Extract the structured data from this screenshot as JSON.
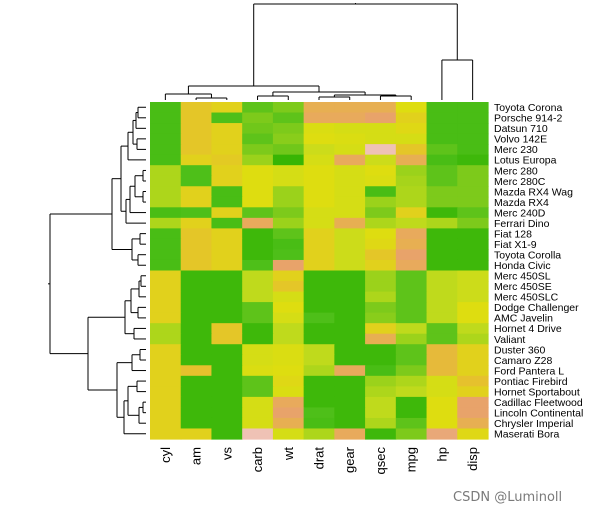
{
  "chart_data": {
    "type": "heatmap",
    "title": "",
    "rows": [
      "Toyota Corona",
      "Porsche 914-2",
      "Datsun 710",
      "Volvo 142E",
      "Merc 230",
      "Lotus Europa",
      "Merc 280",
      "Merc 280C",
      "Mazda RX4 Wag",
      "Mazda RX4",
      "Merc 240D",
      "Ferrari Dino",
      "Fiat 128",
      "Fiat X1-9",
      "Toyota Corolla",
      "Honda Civic",
      "Merc 450SL",
      "Merc 450SE",
      "Merc 450SLC",
      "Dodge Challenger",
      "AMC Javelin",
      "Hornet 4 Drive",
      "Valiant",
      "Duster 360",
      "Camaro Z28",
      "Ford Pantera L",
      "Pontiac Firebird",
      "Hornet Sportabout",
      "Cadillac Fleetwood",
      "Lincoln Continental",
      "Chrysler Imperial",
      "Maserati Bora"
    ],
    "columns": [
      "cyl",
      "am",
      "vs",
      "carb",
      "wt",
      "drat",
      "gear",
      "qsec",
      "mpg",
      "hp",
      "disp"
    ],
    "value_range": [
      0,
      1
    ],
    "color_scale": [
      "#33b300",
      "#4fbf1a",
      "#9bd21b",
      "#c8dc1c",
      "#dedd10",
      "#e6c02e",
      "#e8a36a",
      "#eeb6a6",
      "#f2f2f2"
    ],
    "values": [
      [
        0.1,
        0.6,
        0.55,
        0.15,
        0.2,
        0.7,
        0.7,
        0.7,
        0.5,
        0.1,
        0.1
      ],
      [
        0.1,
        0.6,
        0.12,
        0.2,
        0.15,
        0.72,
        0.72,
        0.75,
        0.55,
        0.1,
        0.1
      ],
      [
        0.1,
        0.6,
        0.55,
        0.18,
        0.2,
        0.48,
        0.45,
        0.45,
        0.52,
        0.1,
        0.1
      ],
      [
        0.1,
        0.6,
        0.55,
        0.15,
        0.22,
        0.5,
        0.48,
        0.45,
        0.45,
        0.1,
        0.1
      ],
      [
        0.1,
        0.6,
        0.55,
        0.2,
        0.18,
        0.4,
        0.45,
        0.9,
        0.6,
        0.15,
        0.1
      ],
      [
        0.1,
        0.55,
        0.58,
        0.25,
        0.02,
        0.45,
        0.72,
        0.4,
        0.7,
        0.1,
        0.05
      ],
      [
        0.3,
        0.12,
        0.55,
        0.5,
        0.45,
        0.5,
        0.45,
        0.5,
        0.25,
        0.15,
        0.2
      ],
      [
        0.3,
        0.12,
        0.55,
        0.5,
        0.45,
        0.5,
        0.45,
        0.48,
        0.28,
        0.15,
        0.2
      ],
      [
        0.3,
        0.55,
        0.1,
        0.5,
        0.25,
        0.5,
        0.45,
        0.1,
        0.3,
        0.2,
        0.2
      ],
      [
        0.3,
        0.55,
        0.1,
        0.5,
        0.25,
        0.5,
        0.45,
        0.25,
        0.3,
        0.2,
        0.2
      ],
      [
        0.1,
        0.12,
        0.55,
        0.15,
        0.2,
        0.45,
        0.45,
        0.2,
        0.55,
        0.05,
        0.15
      ],
      [
        0.3,
        0.55,
        0.1,
        0.72,
        0.25,
        0.45,
        0.7,
        0.3,
        0.35,
        0.3,
        0.2
      ],
      [
        0.1,
        0.6,
        0.55,
        0.05,
        0.15,
        0.55,
        0.4,
        0.5,
        0.72,
        0.05,
        0.05
      ],
      [
        0.1,
        0.6,
        0.55,
        0.05,
        0.1,
        0.55,
        0.4,
        0.52,
        0.7,
        0.05,
        0.05
      ],
      [
        0.1,
        0.6,
        0.55,
        0.05,
        0.12,
        0.55,
        0.4,
        0.6,
        0.75,
        0.05,
        0.05
      ],
      [
        0.1,
        0.6,
        0.55,
        0.12,
        0.75,
        0.55,
        0.4,
        0.55,
        0.72,
        0.05,
        0.05
      ],
      [
        0.55,
        0.05,
        0.05,
        0.35,
        0.55,
        0.05,
        0.05,
        0.25,
        0.15,
        0.35,
        0.4
      ],
      [
        0.55,
        0.05,
        0.05,
        0.35,
        0.6,
        0.05,
        0.05,
        0.25,
        0.15,
        0.35,
        0.4
      ],
      [
        0.55,
        0.05,
        0.05,
        0.35,
        0.45,
        0.05,
        0.05,
        0.3,
        0.15,
        0.35,
        0.4
      ],
      [
        0.55,
        0.05,
        0.05,
        0.15,
        0.5,
        0.05,
        0.05,
        0.2,
        0.15,
        0.35,
        0.5
      ],
      [
        0.55,
        0.05,
        0.05,
        0.15,
        0.45,
        0.12,
        0.05,
        0.22,
        0.15,
        0.35,
        0.5
      ],
      [
        0.3,
        0.05,
        0.6,
        0.05,
        0.35,
        0.05,
        0.05,
        0.55,
        0.35,
        0.15,
        0.35
      ],
      [
        0.3,
        0.05,
        0.6,
        0.05,
        0.35,
        0.05,
        0.05,
        0.7,
        0.25,
        0.15,
        0.3
      ],
      [
        0.55,
        0.05,
        0.05,
        0.45,
        0.48,
        0.35,
        0.05,
        0.05,
        0.15,
        0.65,
        0.55
      ],
      [
        0.55,
        0.05,
        0.05,
        0.45,
        0.48,
        0.35,
        0.05,
        0.05,
        0.15,
        0.65,
        0.55
      ],
      [
        0.55,
        0.62,
        0.05,
        0.48,
        0.5,
        0.3,
        0.72,
        0.1,
        0.2,
        0.65,
        0.55
      ],
      [
        0.55,
        0.05,
        0.05,
        0.15,
        0.52,
        0.05,
        0.05,
        0.25,
        0.3,
        0.45,
        0.62
      ],
      [
        0.55,
        0.05,
        0.05,
        0.15,
        0.48,
        0.05,
        0.05,
        0.3,
        0.35,
        0.45,
        0.55
      ],
      [
        0.55,
        0.05,
        0.05,
        0.45,
        0.72,
        0.05,
        0.05,
        0.35,
        0.05,
        0.5,
        0.75
      ],
      [
        0.55,
        0.05,
        0.05,
        0.45,
        0.75,
        0.12,
        0.05,
        0.35,
        0.05,
        0.5,
        0.75
      ],
      [
        0.55,
        0.05,
        0.05,
        0.45,
        0.7,
        0.1,
        0.05,
        0.3,
        0.15,
        0.5,
        0.7
      ],
      [
        0.55,
        0.55,
        0.05,
        0.9,
        0.45,
        0.3,
        0.72,
        0.05,
        0.2,
        0.78,
        0.52
      ]
    ]
  },
  "watermark": "CSDN @Luminoll"
}
